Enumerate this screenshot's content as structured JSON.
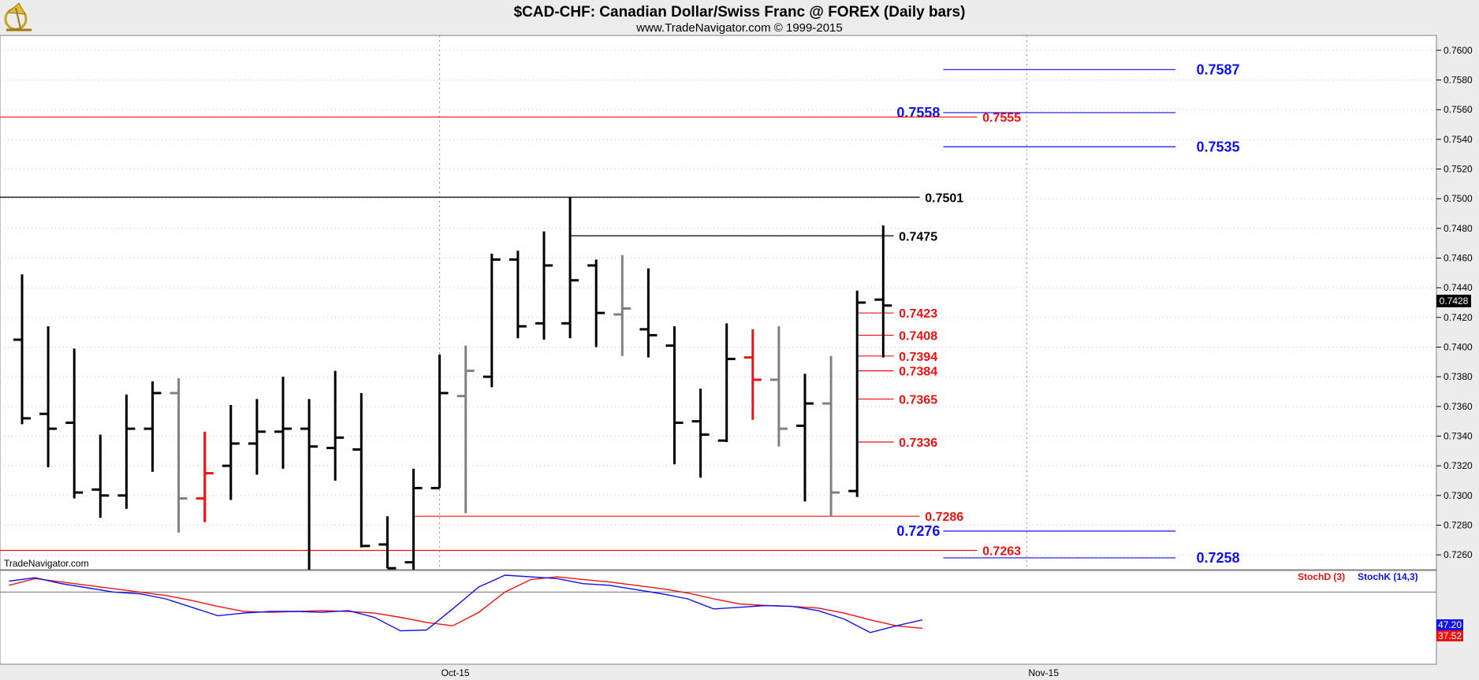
{
  "header": {
    "title": "$CAD-CHF:  Canadian Dollar/Swiss Franc @ FOREX  (Daily bars)",
    "subtitle": "www.TradeNavigator.com © 1999-2015"
  },
  "watermark": "TradeNavigator.com",
  "colors": {
    "black": "#000000",
    "gray": "#808080",
    "red": "#ee1111",
    "blue": "#1111ee",
    "background": "#ffffff",
    "frame": "#ececec"
  },
  "chart_data": {
    "type": "ohlc",
    "ylim": [
      0.725,
      0.761
    ],
    "y_ticks": [
      "0.7600",
      "0.7580",
      "0.7560",
      "0.7540",
      "0.7520",
      "0.7500",
      "0.7480",
      "0.7460",
      "0.7440",
      "0.7420",
      "0.7400",
      "0.7380",
      "0.7360",
      "0.7340",
      "0.7320",
      "0.7300",
      "0.7280",
      "0.7260"
    ],
    "x_labels": [
      {
        "label": "Oct-15",
        "index": 16
      },
      {
        "label": "Nov-15",
        "index": 38.5
      }
    ],
    "last_price": "0.7428",
    "bars": [
      {
        "o": 0.7405,
        "h": 0.7449,
        "l": 0.7348,
        "c": 0.7352,
        "color": "black"
      },
      {
        "o": 0.7355,
        "h": 0.7414,
        "l": 0.7319,
        "c": 0.7345,
        "color": "black"
      },
      {
        "o": 0.7349,
        "h": 0.7399,
        "l": 0.7298,
        "c": 0.7302,
        "color": "black"
      },
      {
        "o": 0.7304,
        "h": 0.7341,
        "l": 0.7285,
        "c": 0.73,
        "color": "black"
      },
      {
        "o": 0.73,
        "h": 0.7368,
        "l": 0.7291,
        "c": 0.7345,
        "color": "black"
      },
      {
        "o": 0.7345,
        "h": 0.7377,
        "l": 0.7316,
        "c": 0.7369,
        "color": "black"
      },
      {
        "o": 0.7369,
        "h": 0.7379,
        "l": 0.7275,
        "c": 0.7298,
        "color": "gray"
      },
      {
        "o": 0.7298,
        "h": 0.7343,
        "l": 0.7282,
        "c": 0.7315,
        "color": "red"
      },
      {
        "o": 0.732,
        "h": 0.7361,
        "l": 0.7297,
        "c": 0.7335,
        "color": "black"
      },
      {
        "o": 0.7335,
        "h": 0.7365,
        "l": 0.7314,
        "c": 0.7343,
        "color": "black"
      },
      {
        "o": 0.7343,
        "h": 0.738,
        "l": 0.7318,
        "c": 0.7345,
        "color": "black"
      },
      {
        "o": 0.7345,
        "h": 0.7365,
        "l": 0.725,
        "c": 0.7333,
        "color": "black"
      },
      {
        "o": 0.7332,
        "h": 0.7384,
        "l": 0.731,
        "c": 0.7339,
        "color": "black"
      },
      {
        "o": 0.7331,
        "h": 0.7369,
        "l": 0.7265,
        "c": 0.7266,
        "color": "black"
      },
      {
        "o": 0.7267,
        "h": 0.7286,
        "l": 0.7251,
        "c": 0.7251,
        "color": "black"
      },
      {
        "o": 0.7255,
        "h": 0.7318,
        "l": 0.725,
        "c": 0.7305,
        "color": "black"
      },
      {
        "o": 0.7305,
        "h": 0.7395,
        "l": 0.7305,
        "c": 0.7369,
        "color": "black"
      },
      {
        "o": 0.7367,
        "h": 0.7401,
        "l": 0.7288,
        "c": 0.7384,
        "color": "gray"
      },
      {
        "o": 0.738,
        "h": 0.7463,
        "l": 0.7373,
        "c": 0.7459,
        "color": "black"
      },
      {
        "o": 0.7459,
        "h": 0.7465,
        "l": 0.7406,
        "c": 0.7414,
        "color": "black"
      },
      {
        "o": 0.7416,
        "h": 0.7478,
        "l": 0.7405,
        "c": 0.7455,
        "color": "black"
      },
      {
        "o": 0.7416,
        "h": 0.7501,
        "l": 0.7406,
        "c": 0.7445,
        "color": "black"
      },
      {
        "o": 0.7455,
        "h": 0.7459,
        "l": 0.74,
        "c": 0.7423,
        "color": "black"
      },
      {
        "o": 0.7422,
        "h": 0.7462,
        "l": 0.7394,
        "c": 0.7426,
        "color": "gray"
      },
      {
        "o": 0.7412,
        "h": 0.7453,
        "l": 0.7393,
        "c": 0.7408,
        "color": "black"
      },
      {
        "o": 0.7401,
        "h": 0.7414,
        "l": 0.7321,
        "c": 0.7349,
        "color": "black"
      },
      {
        "o": 0.735,
        "h": 0.7372,
        "l": 0.7312,
        "c": 0.7341,
        "color": "black"
      },
      {
        "o": 0.7337,
        "h": 0.7416,
        "l": 0.7336,
        "c": 0.7392,
        "color": "black"
      },
      {
        "o": 0.7393,
        "h": 0.7412,
        "l": 0.7351,
        "c": 0.7378,
        "color": "red"
      },
      {
        "o": 0.7378,
        "h": 0.7414,
        "l": 0.7333,
        "c": 0.7345,
        "color": "gray"
      },
      {
        "o": 0.7347,
        "h": 0.7382,
        "l": 0.7296,
        "c": 0.7362,
        "color": "black"
      },
      {
        "o": 0.7362,
        "h": 0.7394,
        "l": 0.7286,
        "c": 0.7302,
        "color": "gray"
      },
      {
        "o": 0.7303,
        "h": 0.7438,
        "l": 0.7299,
        "c": 0.743,
        "color": "black"
      },
      {
        "o": 0.7432,
        "h": 0.7482,
        "l": 0.7393,
        "c": 0.7428,
        "color": "black"
      }
    ],
    "levels": [
      {
        "label": "0.7587",
        "value": 0.7587,
        "color": "blue",
        "x0": 35.3,
        "x1": 44.2,
        "label_at": 45.0,
        "label_side": "left",
        "size": 18
      },
      {
        "label": "0.7558",
        "value": 0.7558,
        "color": "blue",
        "x0": 35.3,
        "x1": 44.2,
        "label_at": 35.3,
        "label_side": "right",
        "size": 18
      },
      {
        "label": "0.7555",
        "value": 0.7555,
        "color": "red",
        "x0": -2,
        "x1": 36.6,
        "label_at": 36.8,
        "label_side": "left",
        "size": 16
      },
      {
        "label": "0.7535",
        "value": 0.7535,
        "color": "blue",
        "x0": 35.3,
        "x1": 44.2,
        "label_at": 45.0,
        "label_side": "left",
        "size": 18
      },
      {
        "label": "0.7501",
        "value": 0.7501,
        "color": "black",
        "x0": -2,
        "x1": 34.4,
        "label_at": 34.6,
        "label_side": "left",
        "size": 16
      },
      {
        "label": "0.7475",
        "value": 0.7475,
        "color": "black",
        "x0": 21,
        "x1": 33.4,
        "label_at": 33.6,
        "label_side": "left",
        "size": 16
      },
      {
        "label": "0.7423",
        "value": 0.7423,
        "color": "red",
        "x0": 32,
        "x1": 33.4,
        "label_at": 33.6,
        "label_side": "left",
        "size": 16
      },
      {
        "label": "0.7408",
        "value": 0.7408,
        "color": "red",
        "x0": 32,
        "x1": 33.4,
        "label_at": 33.6,
        "label_side": "left",
        "size": 16
      },
      {
        "label": "0.7394",
        "value": 0.7394,
        "color": "red",
        "x0": 32,
        "x1": 33.4,
        "label_at": 33.6,
        "label_side": "left",
        "size": 16
      },
      {
        "label": "0.7384",
        "value": 0.7384,
        "color": "red",
        "x0": 32,
        "x1": 33.4,
        "label_at": 33.6,
        "label_side": "left",
        "size": 16
      },
      {
        "label": "0.7365",
        "value": 0.7365,
        "color": "red",
        "x0": 32,
        "x1": 33.4,
        "label_at": 33.6,
        "label_side": "left",
        "size": 16
      },
      {
        "label": "0.7336",
        "value": 0.7336,
        "color": "red",
        "x0": 32,
        "x1": 33.4,
        "label_at": 33.6,
        "label_side": "left",
        "size": 16
      },
      {
        "label": "0.7286",
        "value": 0.7286,
        "color": "red",
        "x0": 15,
        "x1": 34.4,
        "label_at": 34.6,
        "label_side": "left",
        "size": 16
      },
      {
        "label": "0.7276",
        "value": 0.7276,
        "color": "blue",
        "x0": 35.3,
        "x1": 44.2,
        "label_at": 35.3,
        "label_side": "right",
        "size": 18
      },
      {
        "label": "0.7263",
        "value": 0.7263,
        "color": "red",
        "x0": -2,
        "x1": 36.6,
        "label_at": 36.8,
        "label_side": "left",
        "size": 16
      },
      {
        "label": "0.7258",
        "value": 0.7258,
        "color": "blue",
        "x0": 35.3,
        "x1": 44.2,
        "label_at": 45.0,
        "label_side": "left",
        "size": 18
      }
    ],
    "stochastic": {
      "legend": [
        {
          "label": "StochD (3)",
          "color": "red"
        },
        {
          "label": "StochK (14,3)",
          "color": "blue"
        }
      ],
      "ylim": [
        0,
        100
      ],
      "reference_line": 80,
      "k_value": "47.20",
      "d_value": "37.52",
      "k": [
        93,
        97,
        90,
        85,
        80,
        78,
        72,
        62,
        52,
        55,
        57,
        57,
        56,
        58,
        50,
        34,
        35,
        60,
        86,
        100,
        98,
        96,
        90,
        88,
        83,
        78,
        72,
        60,
        62,
        64,
        63,
        58,
        48,
        32,
        40,
        47
      ],
      "d": [
        88,
        96,
        92,
        88,
        84,
        80,
        76,
        70,
        63,
        57,
        56,
        57,
        58,
        57,
        55,
        50,
        44,
        40,
        56,
        80,
        95,
        98,
        95,
        92,
        88,
        84,
        79,
        72,
        66,
        64,
        63,
        61,
        55,
        47,
        40,
        37
      ]
    }
  }
}
